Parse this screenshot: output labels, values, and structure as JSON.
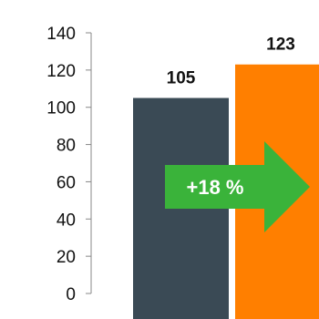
{
  "chart_data": {
    "type": "bar",
    "categories": [
      "",
      ""
    ],
    "values": [
      105,
      123
    ],
    "colors": [
      "#3a4a55",
      "#ff7f00"
    ],
    "value_labels": [
      "105",
      "123"
    ],
    "ylim": [
      0,
      140
    ],
    "yticks": [
      0,
      20,
      40,
      60,
      80,
      100,
      120,
      140
    ],
    "grid": false,
    "annotation": {
      "text": "+18 %",
      "shape": "right-arrow",
      "color": "#3ab33a"
    }
  }
}
